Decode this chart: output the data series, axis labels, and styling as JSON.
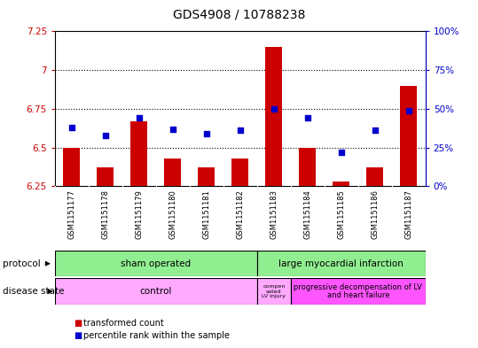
{
  "title": "GDS4908 / 10788238",
  "samples": [
    "GSM1151177",
    "GSM1151178",
    "GSM1151179",
    "GSM1151180",
    "GSM1151181",
    "GSM1151182",
    "GSM1151183",
    "GSM1151184",
    "GSM1151185",
    "GSM1151186",
    "GSM1151187"
  ],
  "bar_values": [
    6.5,
    6.37,
    6.67,
    6.43,
    6.37,
    6.43,
    7.15,
    6.5,
    6.28,
    6.37,
    6.9
  ],
  "dot_values": [
    38,
    33,
    44,
    37,
    34,
    36,
    50,
    44,
    22,
    36,
    49
  ],
  "bar_color": "#cc0000",
  "dot_color": "#0000cc",
  "ylim_left": [
    6.25,
    7.25
  ],
  "ylim_right": [
    0,
    100
  ],
  "yticks_left": [
    6.25,
    6.5,
    6.75,
    7.0,
    7.25
  ],
  "yticks_right": [
    0,
    25,
    50,
    75,
    100
  ],
  "ytick_labels_left": [
    "6.25",
    "6.5",
    "6.75",
    "7",
    "7.25"
  ],
  "ytick_labels_right": [
    "0%",
    "25%",
    "50%",
    "75%",
    "100%"
  ],
  "hlines": [
    6.5,
    6.75,
    7.0
  ],
  "sham_count": 6,
  "lmi_count": 5,
  "ctrl_count": 6,
  "comp_count": 1,
  "prog_count": 4,
  "protocol_color": "#90ee90",
  "disease_ctrl_color": "#ffaaff",
  "disease_prog_color": "#ff55ff",
  "label_gray": "#c8c8c8",
  "legend_red": "transformed count",
  "legend_blue": "percentile rank within the sample"
}
